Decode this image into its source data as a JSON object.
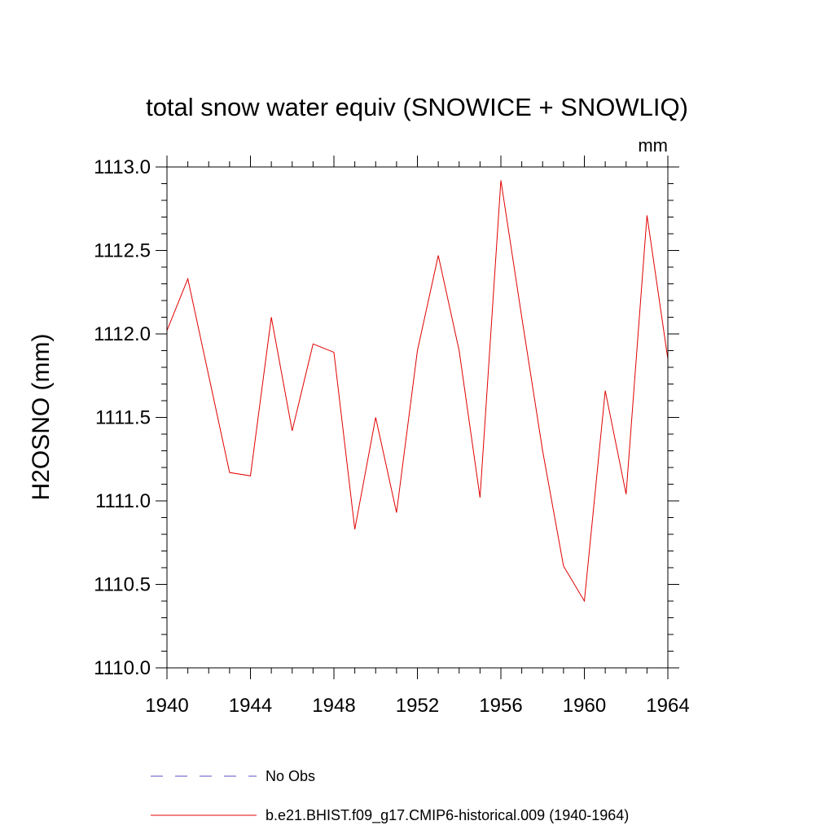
{
  "chart_data": {
    "type": "line",
    "title": "total snow water equiv (SNOWICE + SNOWLIQ)",
    "units_label": "mm",
    "xlabel": "",
    "ylabel": "H2OSNO  (mm)",
    "xlim": [
      1940,
      1964
    ],
    "ylim": [
      1110.0,
      1113.0
    ],
    "x_ticks": [
      1940,
      1944,
      1948,
      1952,
      1956,
      1960,
      1964
    ],
    "x_tick_labels": [
      "1940",
      "1944",
      "1948",
      "1952",
      "1956",
      "1960",
      "1964"
    ],
    "y_ticks": [
      1110.0,
      1110.5,
      1111.0,
      1111.5,
      1112.0,
      1112.5,
      1113.0
    ],
    "y_tick_labels": [
      "1110.0",
      "1110.5",
      "1111.0",
      "1111.5",
      "1112.0",
      "1112.5",
      "1113.0"
    ],
    "grid": false,
    "legend_position": "bottom",
    "series": [
      {
        "name": "b.e21.BHIST.f09_g17.CMIP6-historical.009 (1940-1964)",
        "color": "#e00000",
        "dash": "solid",
        "x": [
          1940,
          1941,
          1942,
          1943,
          1944,
          1945,
          1946,
          1947,
          1948,
          1949,
          1950,
          1951,
          1952,
          1953,
          1954,
          1955,
          1956,
          1957,
          1958,
          1959,
          1960,
          1961,
          1962,
          1963,
          1964
        ],
        "values": [
          1112.02,
          1112.33,
          1111.75,
          1111.17,
          1111.15,
          1112.1,
          1111.42,
          1111.94,
          1111.89,
          1110.83,
          1111.5,
          1110.93,
          1111.9,
          1112.47,
          1111.9,
          1111.02,
          1112.92,
          1112.1,
          1111.3,
          1110.61,
          1110.4,
          1111.66,
          1111.04,
          1112.71,
          1111.85
        ]
      }
    ],
    "legend": [
      {
        "label": "No Obs",
        "color": "#5a50c8",
        "dash": "dashed"
      },
      {
        "label": "b.e21.BHIST.f09_g17.CMIP6-historical.009 (1940-1964)",
        "color": "#e00000",
        "dash": "solid"
      }
    ]
  }
}
